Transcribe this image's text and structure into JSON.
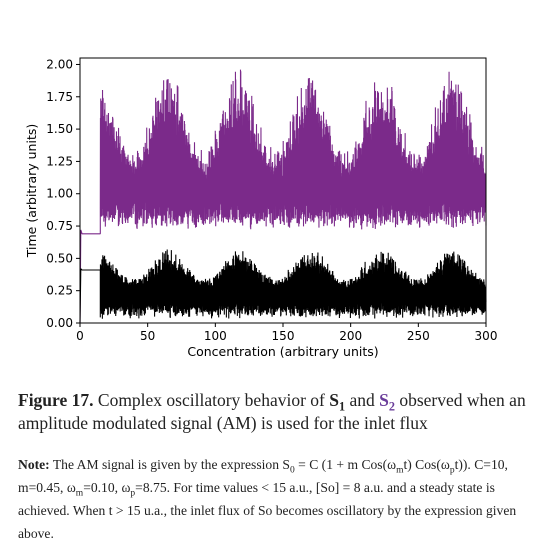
{
  "chart_data": {
    "type": "line",
    "xlabel": "Concentration (arbitrary units)",
    "ylabel": "Time (arbitrary units)",
    "xlim": [
      0,
      300
    ],
    "ylim": [
      0.0,
      2.05
    ],
    "x_ticks": [
      "0",
      "50",
      "100",
      "150",
      "200",
      "250",
      "300"
    ],
    "y_ticks": [
      "0.00",
      "0.25",
      "0.50",
      "0.75",
      "1.00",
      "1.25",
      "1.50",
      "1.75",
      "2.00"
    ],
    "grid": false,
    "legend": "none",
    "series": [
      {
        "color": "#7b2a8a",
        "steady_value": 0.69,
        "steady_until_x": 15,
        "oscillation_center": 1.05,
        "oscillation_min_range": [
          0.72,
          0.82
        ],
        "oscillation_max_range": [
          1.35,
          1.98
        ]
      },
      {
        "color": "#000000",
        "steady_value": 0.41,
        "steady_until_x": 15,
        "oscillation_center": 0.22,
        "oscillation_min_range": [
          0.03,
          0.1
        ],
        "oscillation_max_range": [
          0.35,
          0.58
        ]
      }
    ]
  },
  "caption": {
    "label": "Figure 17.",
    "text_a": " Complex oscillatory behavior of ",
    "s": "S",
    "sub1": "1",
    "and": " and ",
    "sub2": "2",
    "text_b": " observed when an amplitude modulated signal (AM) is used for the inlet flux",
    "colors": {
      "s1": "#1a1a1a",
      "s2": "#6a3d9a"
    }
  },
  "note": {
    "label": "Note:",
    "p1": " The AM signal is given by the expression S",
    "sub0": "0",
    "p2": " = C (1 + m Cos(ω",
    "subm": "m",
    "p3": "t) Cos(ω",
    "subp": "p",
    "p4": "t)). C=10, m=0.45, ω",
    "p5": "=0.10, ω",
    "p6": "=8.75. For time values < 15 a.u., [So] = 8 a.u. and a steady state is achieved. When t > 15 u.a., the inlet flux of So becomes oscillatory by the expression given above."
  }
}
